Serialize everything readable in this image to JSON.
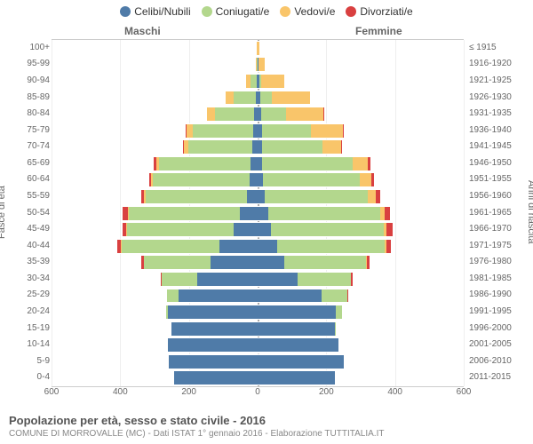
{
  "type": "population-pyramid",
  "legend": [
    {
      "label": "Celibi/Nubili",
      "color": "#4f7ba8"
    },
    {
      "label": "Coniugati/e",
      "color": "#b3d78d"
    },
    {
      "label": "Vedovi/e",
      "color": "#f9c56a"
    },
    {
      "label": "Divorziati/e",
      "color": "#d94040"
    }
  ],
  "columns": {
    "left": "Maschi",
    "right": "Femmine"
  },
  "y_left_title": "Fasce di età",
  "y_right_title": "Anni di nascita",
  "x_axis": {
    "max": 600,
    "ticks": [
      600,
      400,
      200,
      0,
      200,
      400,
      600
    ]
  },
  "title": "Popolazione per età, sesso e stato civile - 2016",
  "subtitle": "COMUNE DI MORROVALLE (MC) - Dati ISTAT 1° gennaio 2016 - Elaborazione TUTTITALIA.IT",
  "chart_bg": "#ffffff",
  "grid_color": "#eeeeee",
  "center_color": "#aaaaaa",
  "label_color": "#666666",
  "rows": [
    {
      "age": "100+",
      "birth": "≤ 1915",
      "m": {
        "cel": 0,
        "con": 0,
        "ved": 2,
        "div": 0
      },
      "f": {
        "cel": 0,
        "con": 0,
        "ved": 4,
        "div": 0
      }
    },
    {
      "age": "95-99",
      "birth": "1916-1920",
      "m": {
        "cel": 0,
        "con": 2,
        "ved": 4,
        "div": 0
      },
      "f": {
        "cel": 2,
        "con": 0,
        "ved": 18,
        "div": 0
      }
    },
    {
      "age": "90-94",
      "birth": "1921-1925",
      "m": {
        "cel": 2,
        "con": 18,
        "ved": 14,
        "div": 0
      },
      "f": {
        "cel": 4,
        "con": 6,
        "ved": 68,
        "div": 0
      }
    },
    {
      "age": "85-89",
      "birth": "1926-1930",
      "m": {
        "cel": 6,
        "con": 64,
        "ved": 22,
        "div": 0
      },
      "f": {
        "cel": 8,
        "con": 34,
        "ved": 110,
        "div": 0
      }
    },
    {
      "age": "80-84",
      "birth": "1931-1935",
      "m": {
        "cel": 10,
        "con": 114,
        "ved": 24,
        "div": 0
      },
      "f": {
        "cel": 10,
        "con": 72,
        "ved": 110,
        "div": 2
      }
    },
    {
      "age": "75-79",
      "birth": "1936-1940",
      "m": {
        "cel": 14,
        "con": 176,
        "ved": 18,
        "div": 2
      },
      "f": {
        "cel": 14,
        "con": 142,
        "ved": 92,
        "div": 4
      }
    },
    {
      "age": "70-74",
      "birth": "1941-1945",
      "m": {
        "cel": 16,
        "con": 186,
        "ved": 12,
        "div": 4
      },
      "f": {
        "cel": 12,
        "con": 176,
        "ved": 54,
        "div": 4
      }
    },
    {
      "age": "65-69",
      "birth": "1946-1950",
      "m": {
        "cel": 22,
        "con": 264,
        "ved": 10,
        "div": 6
      },
      "f": {
        "cel": 14,
        "con": 262,
        "ved": 46,
        "div": 6
      }
    },
    {
      "age": "60-64",
      "birth": "1951-1955",
      "m": {
        "cel": 24,
        "con": 280,
        "ved": 6,
        "div": 6
      },
      "f": {
        "cel": 16,
        "con": 282,
        "ved": 32,
        "div": 8
      }
    },
    {
      "age": "55-59",
      "birth": "1956-1960",
      "m": {
        "cel": 30,
        "con": 296,
        "ved": 4,
        "div": 10
      },
      "f": {
        "cel": 20,
        "con": 302,
        "ved": 22,
        "div": 12
      }
    },
    {
      "age": "50-54",
      "birth": "1961-1965",
      "m": {
        "cel": 52,
        "con": 322,
        "ved": 4,
        "div": 14
      },
      "f": {
        "cel": 30,
        "con": 326,
        "ved": 14,
        "div": 16
      }
    },
    {
      "age": "45-49",
      "birth": "1966-1970",
      "m": {
        "cel": 70,
        "con": 310,
        "ved": 2,
        "div": 12
      },
      "f": {
        "cel": 38,
        "con": 330,
        "ved": 8,
        "div": 16
      }
    },
    {
      "age": "40-44",
      "birth": "1971-1975",
      "m": {
        "cel": 112,
        "con": 284,
        "ved": 2,
        "div": 12
      },
      "f": {
        "cel": 56,
        "con": 314,
        "ved": 4,
        "div": 14
      }
    },
    {
      "age": "35-39",
      "birth": "1976-1980",
      "m": {
        "cel": 136,
        "con": 196,
        "ved": 0,
        "div": 6
      },
      "f": {
        "cel": 78,
        "con": 238,
        "ved": 2,
        "div": 8
      }
    },
    {
      "age": "30-34",
      "birth": "1981-1985",
      "m": {
        "cel": 176,
        "con": 104,
        "ved": 0,
        "div": 2
      },
      "f": {
        "cel": 116,
        "con": 156,
        "ved": 0,
        "div": 4
      }
    },
    {
      "age": "25-29",
      "birth": "1986-1990",
      "m": {
        "cel": 230,
        "con": 34,
        "ved": 0,
        "div": 0
      },
      "f": {
        "cel": 186,
        "con": 76,
        "ved": 0,
        "div": 2
      }
    },
    {
      "age": "20-24",
      "birth": "1991-1995",
      "m": {
        "cel": 260,
        "con": 6,
        "ved": 0,
        "div": 0
      },
      "f": {
        "cel": 228,
        "con": 18,
        "ved": 0,
        "div": 0
      }
    },
    {
      "age": "15-19",
      "birth": "1996-2000",
      "m": {
        "cel": 252,
        "con": 0,
        "ved": 0,
        "div": 0
      },
      "f": {
        "cel": 226,
        "con": 2,
        "ved": 0,
        "div": 0
      }
    },
    {
      "age": "10-14",
      "birth": "2001-2005",
      "m": {
        "cel": 262,
        "con": 0,
        "ved": 0,
        "div": 0
      },
      "f": {
        "cel": 236,
        "con": 0,
        "ved": 0,
        "div": 0
      }
    },
    {
      "age": "5-9",
      "birth": "2006-2010",
      "m": {
        "cel": 258,
        "con": 0,
        "ved": 0,
        "div": 0
      },
      "f": {
        "cel": 252,
        "con": 0,
        "ved": 0,
        "div": 0
      }
    },
    {
      "age": "0-4",
      "birth": "2011-2015",
      "m": {
        "cel": 242,
        "con": 0,
        "ved": 0,
        "div": 0
      },
      "f": {
        "cel": 226,
        "con": 0,
        "ved": 0,
        "div": 0
      }
    }
  ]
}
